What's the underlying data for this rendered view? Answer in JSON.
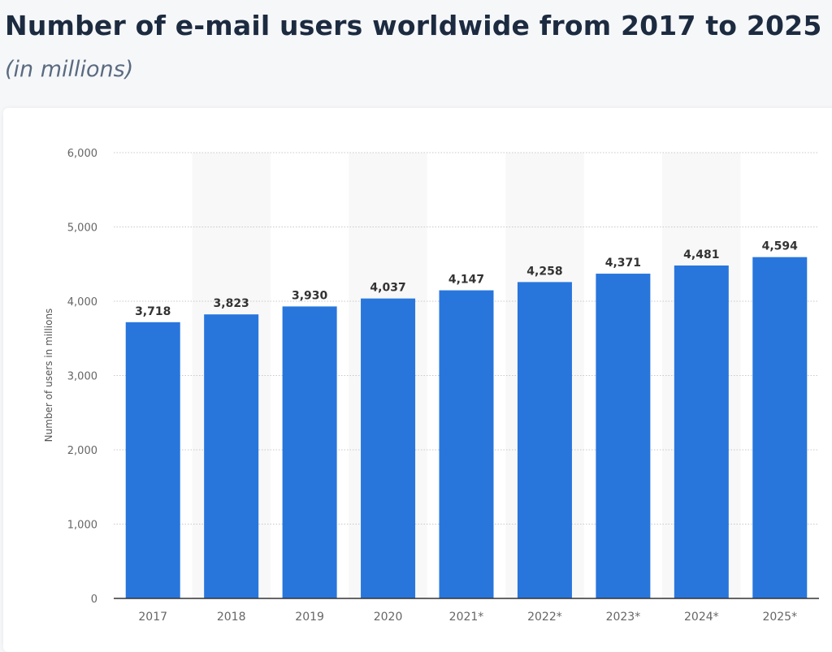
{
  "title": "Number of e-mail users worldwide from 2017 to 2025",
  "subtitle": "(in millions)",
  "chart_data": {
    "type": "bar",
    "categories": [
      "2017",
      "2018",
      "2019",
      "2020",
      "2021*",
      "2022*",
      "2023*",
      "2024*",
      "2025*"
    ],
    "values": [
      3718,
      3823,
      3930,
      4037,
      4147,
      4258,
      4371,
      4481,
      4594
    ],
    "value_labels": [
      "3,718",
      "3,823",
      "3,930",
      "4,037",
      "4,147",
      "4,258",
      "4,371",
      "4,481",
      "4,594"
    ],
    "xlabel": "",
    "ylabel": "Number of users in millions",
    "ylim": [
      0,
      6000
    ],
    "yticks": [
      0,
      1000,
      2000,
      3000,
      4000,
      5000,
      6000
    ],
    "ytick_labels": [
      "0",
      "1,000",
      "2,000",
      "3,000",
      "4,000",
      "5,000",
      "6,000"
    ],
    "grid": true,
    "bar_color": "#2876dc"
  }
}
